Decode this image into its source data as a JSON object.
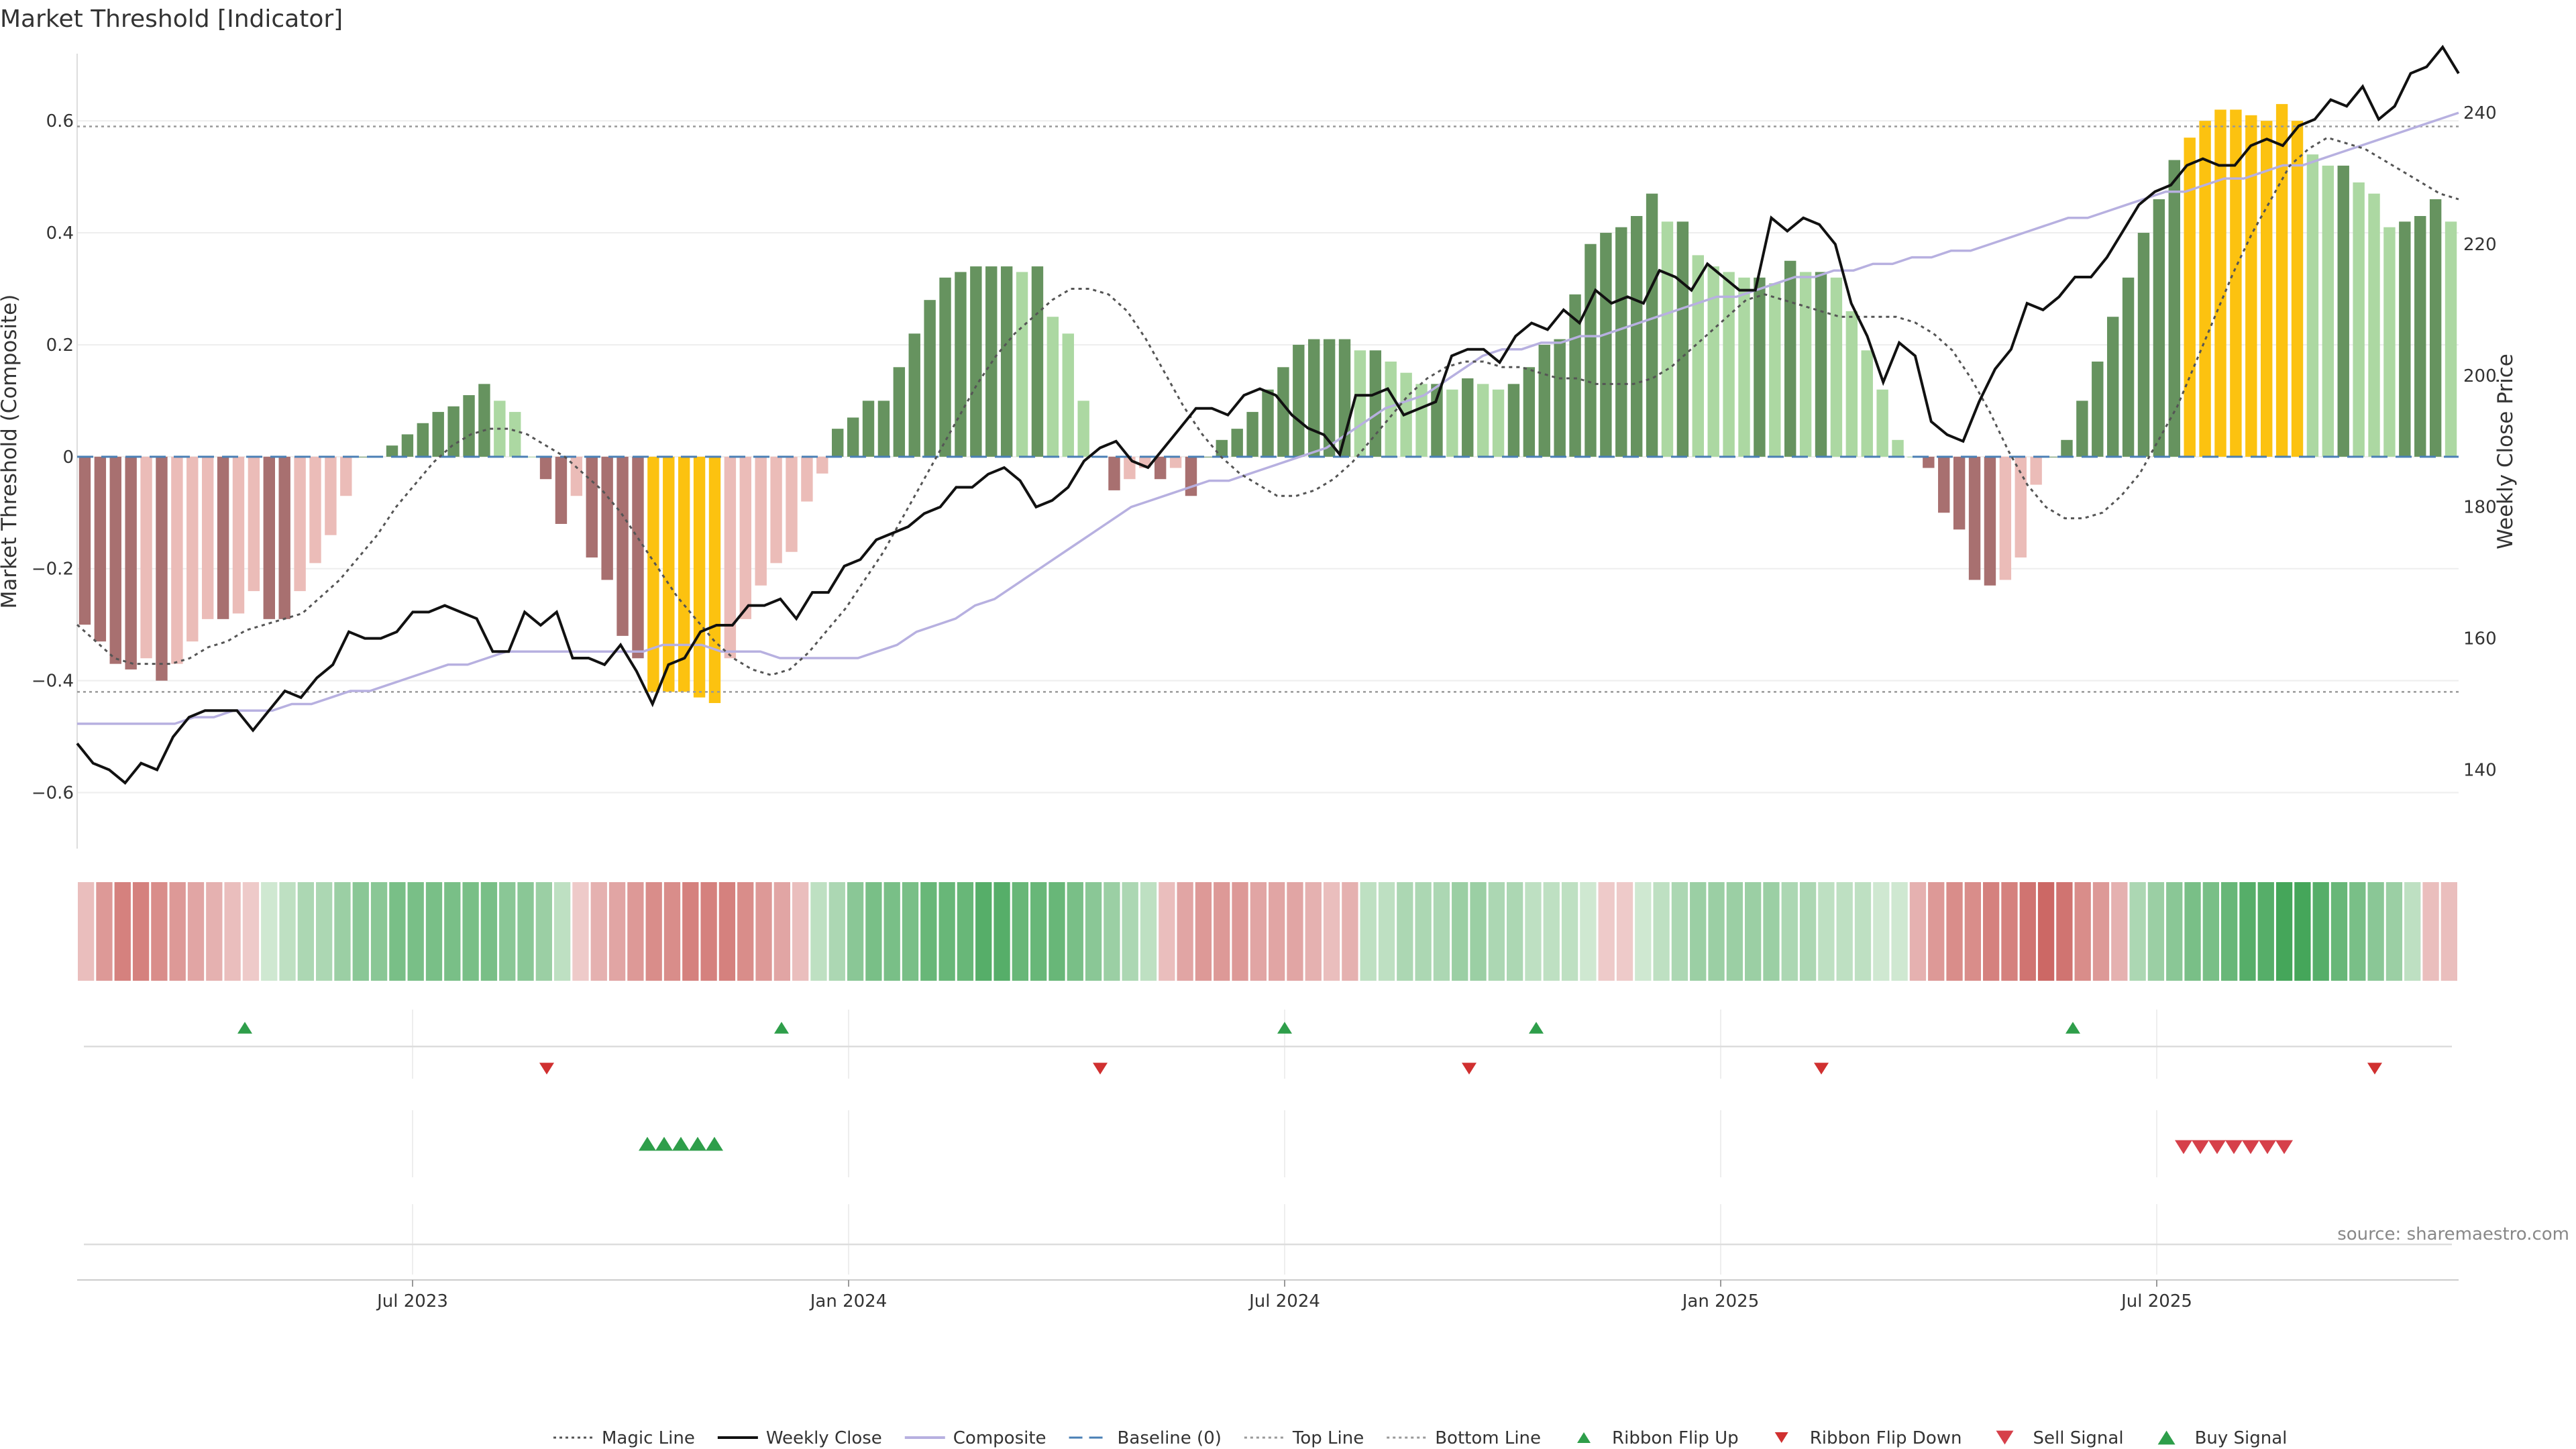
{
  "title": "Market Threshold [Indicator]",
  "source_label": "source: sharemaestro.com",
  "chart_data": {
    "type": "bar",
    "y_left_label": "Market Threshold (Composite)",
    "y_right_label": "Weekly Close Price",
    "y_left_ticks": [
      0.6,
      0.4,
      0.2,
      0,
      -0.2,
      -0.4,
      -0.6
    ],
    "y_left_tick_labels": [
      "0.6",
      "0.4",
      "0.2",
      "0",
      "−0.2",
      "−0.4",
      "−0.6"
    ],
    "ylim_left": [
      -0.7,
      0.72
    ],
    "y_right_ticks": [
      240,
      220,
      200,
      180,
      160,
      140
    ],
    "y_right_tick_labels": [
      "240",
      "220",
      "200",
      "180",
      "160",
      "140"
    ],
    "ylim_right": [
      128,
      249
    ],
    "x_range_weeks": [
      0,
      142
    ],
    "x_ticks": [
      {
        "label": "Jul 2023",
        "week": 20
      },
      {
        "label": "Jan 2024",
        "week": 46
      },
      {
        "label": "Jul 2024",
        "week": 72
      },
      {
        "label": "Jan 2025",
        "week": 98
      },
      {
        "label": "Jul 2025",
        "week": 124
      }
    ],
    "top_line": 0.59,
    "bottom_line": -0.42,
    "baseline": 0,
    "composite": [
      -0.3,
      -0.33,
      -0.37,
      -0.38,
      -0.36,
      -0.4,
      -0.37,
      -0.33,
      -0.29,
      -0.29,
      -0.28,
      -0.24,
      -0.29,
      -0.29,
      -0.24,
      -0.19,
      -0.14,
      -0.07,
      0.0,
      0.0,
      0.02,
      0.04,
      0.06,
      0.08,
      0.09,
      0.11,
      0.13,
      0.1,
      0.08,
      0.0,
      -0.04,
      -0.12,
      -0.07,
      -0.18,
      -0.22,
      -0.32,
      -0.36,
      -0.42,
      -0.42,
      -0.42,
      -0.43,
      -0.44,
      -0.36,
      -0.29,
      -0.23,
      -0.19,
      -0.17,
      -0.08,
      -0.03,
      0.05,
      0.07,
      0.1,
      0.1,
      0.16,
      0.22,
      0.28,
      0.32,
      0.33,
      0.34,
      0.34,
      0.34,
      0.33,
      0.34,
      0.25,
      0.22,
      0.1,
      0.0,
      -0.06,
      -0.04,
      -0.02,
      -0.04,
      -0.02,
      -0.07,
      0.0,
      0.03,
      0.05,
      0.08,
      0.12,
      0.16,
      0.2,
      0.21,
      0.21,
      0.21,
      0.19,
      0.19,
      0.17,
      0.15,
      0.13,
      0.13,
      0.12,
      0.14,
      0.13,
      0.12,
      0.13,
      0.16,
      0.2,
      0.21,
      0.29,
      0.38,
      0.4,
      0.41,
      0.43,
      0.47,
      0.42,
      0.42,
      0.36,
      0.34,
      0.33,
      0.32,
      0.32,
      0.31,
      0.35,
      0.33,
      0.33,
      0.32,
      0.26,
      0.19,
      0.12,
      0.03,
      0.0,
      -0.02,
      -0.1,
      -0.13,
      -0.22,
      -0.23,
      -0.22,
      -0.18,
      -0.05,
      0.0,
      0.03,
      0.1,
      0.17,
      0.25,
      0.32,
      0.4,
      0.46,
      0.53,
      0.57,
      0.6,
      0.62,
      0.62,
      0.61,
      0.6,
      0.63,
      0.6,
      0.54,
      0.52,
      0.52,
      0.49
    ],
    "composite_extra": [
      0.47,
      0.41,
      0.42,
      0.43,
      0.46,
      0.42
    ],
    "bar_styles": "one style code per composite value: R=dark red, r=light red, G=dark green, g=light green, Y=gold; generated from value trend",
    "weekly_close": [
      144,
      141,
      140,
      138,
      141,
      140,
      145,
      148,
      149,
      149,
      149,
      146,
      149,
      152,
      151,
      154,
      156,
      161,
      160,
      160,
      161,
      164,
      164,
      165,
      164,
      163,
      158,
      158,
      164,
      162,
      164,
      157,
      157,
      156,
      159,
      155,
      150,
      156,
      157,
      161,
      162,
      162,
      165,
      165,
      166,
      163,
      167,
      167,
      171,
      172,
      175,
      176,
      177,
      179,
      180,
      183,
      183,
      185,
      186,
      184,
      180,
      181,
      183,
      187,
      189,
      190,
      187,
      186,
      189,
      192,
      195,
      195,
      194,
      197,
      198,
      197,
      194,
      192,
      191,
      188,
      197,
      197,
      198,
      194,
      195,
      196,
      203,
      204,
      204,
      202,
      206,
      208,
      207,
      210,
      208,
      213,
      211,
      212,
      211,
      216,
      215,
      213,
      217,
      215,
      213,
      213,
      224,
      222,
      224,
      223,
      220,
      211,
      206,
      199,
      205,
      203,
      193,
      191,
      190,
      196,
      201,
      204,
      211,
      210,
      212,
      215,
      215,
      218,
      222,
      226,
      228,
      229,
      232,
      233,
      232,
      232,
      235,
      236,
      235,
      238,
      239,
      242,
      241,
      244,
      239,
      241,
      246,
      247,
      250,
      246
    ],
    "magic_line": [
      -0.3,
      -0.33,
      -0.36,
      -0.37,
      -0.37,
      -0.37,
      -0.36,
      -0.34,
      -0.33,
      -0.31,
      -0.3,
      -0.29,
      -0.28,
      -0.25,
      -0.22,
      -0.18,
      -0.14,
      -0.09,
      -0.05,
      -0.01,
      0.02,
      0.04,
      0.05,
      0.05,
      0.04,
      0.02,
      0.0,
      -0.03,
      -0.06,
      -0.1,
      -0.15,
      -0.2,
      -0.25,
      -0.29,
      -0.33,
      -0.36,
      -0.38,
      -0.39,
      -0.38,
      -0.35,
      -0.31,
      -0.27,
      -0.22,
      -0.17,
      -0.11,
      -0.05,
      0.01,
      0.07,
      0.13,
      0.18,
      0.22,
      0.25,
      0.28,
      0.3,
      0.3,
      0.29,
      0.26,
      0.21,
      0.15,
      0.09,
      0.04,
      0.0,
      -0.03,
      -0.05,
      -0.07,
      -0.07,
      -0.06,
      -0.04,
      -0.01,
      0.03,
      0.07,
      0.11,
      0.14,
      0.16,
      0.17,
      0.17,
      0.16,
      0.16,
      0.15,
      0.14,
      0.14,
      0.13,
      0.13,
      0.13,
      0.14,
      0.16,
      0.19,
      0.22,
      0.25,
      0.28,
      0.29,
      0.28,
      0.27,
      0.26,
      0.25,
      0.25,
      0.25,
      0.25,
      0.24,
      0.22,
      0.19,
      0.14,
      0.08,
      0.01,
      -0.05,
      -0.09,
      -0.11,
      -0.11,
      -0.1,
      -0.07,
      -0.03,
      0.03,
      0.09,
      0.17,
      0.25,
      0.33,
      0.4,
      0.46,
      0.52,
      0.55,
      0.57,
      0.56,
      0.55,
      0.53,
      0.51,
      0.49,
      0.47,
      0.46
    ],
    "composite_smooth": [
      147,
      147,
      147,
      147,
      147,
      147,
      148,
      148,
      149,
      149,
      149,
      150,
      150,
      151,
      152,
      152,
      153,
      154,
      155,
      156,
      156,
      157,
      158,
      158,
      158,
      158,
      158,
      158,
      158,
      158,
      159,
      159,
      159,
      158,
      158,
      158,
      157,
      157,
      157,
      157,
      157,
      158,
      159,
      161,
      162,
      163,
      165,
      166,
      168,
      170,
      172,
      174,
      176,
      178,
      180,
      181,
      182,
      183,
      184,
      184,
      185,
      186,
      187,
      188,
      189,
      191,
      193,
      195,
      196,
      197,
      199,
      201,
      203,
      204,
      204,
      205,
      205,
      206,
      206,
      207,
      208,
      209,
      210,
      211,
      212,
      212,
      213,
      214,
      215,
      215,
      216,
      216,
      217,
      217,
      218,
      218,
      219,
      219,
      220,
      221,
      222,
      223,
      224,
      224,
      225,
      226,
      227,
      228,
      228,
      229,
      230,
      230,
      231,
      232,
      232,
      233,
      234,
      235,
      236,
      237,
      238,
      239,
      240
    ],
    "ribbon_values": [
      -0.2,
      -0.5,
      -0.7,
      -0.7,
      -0.6,
      -0.5,
      -0.4,
      -0.3,
      -0.2,
      -0.1,
      0.1,
      0.2,
      0.3,
      0.3,
      0.4,
      0.5,
      0.5,
      0.6,
      0.6,
      0.6,
      0.6,
      0.6,
      0.6,
      0.5,
      0.5,
      0.4,
      0.2,
      -0.1,
      -0.3,
      -0.4,
      -0.5,
      -0.6,
      -0.6,
      -0.7,
      -0.7,
      -0.7,
      -0.6,
      -0.5,
      -0.4,
      -0.2,
      0.2,
      0.3,
      0.5,
      0.6,
      0.6,
      0.6,
      0.7,
      0.7,
      0.7,
      0.8,
      0.8,
      0.7,
      0.7,
      0.7,
      0.6,
      0.5,
      0.4,
      0.3,
      0.2,
      -0.2,
      -0.4,
      -0.5,
      -0.5,
      -0.5,
      -0.4,
      -0.4,
      -0.4,
      -0.3,
      -0.2,
      -0.3,
      0.2,
      0.2,
      0.3,
      0.3,
      0.3,
      0.4,
      0.4,
      0.3,
      0.3,
      0.2,
      0.2,
      0.2,
      0.1,
      -0.1,
      -0.1,
      0.1,
      0.2,
      0.3,
      0.4,
      0.4,
      0.4,
      0.4,
      0.4,
      0.3,
      0.3,
      0.2,
      0.2,
      0.2,
      0.1,
      0.1,
      -0.3,
      -0.5,
      -0.6,
      -0.6,
      -0.7,
      -0.7,
      -0.8,
      -0.9,
      -0.8,
      -0.6,
      -0.5,
      -0.3,
      0.3,
      0.4,
      0.5,
      0.6,
      0.6,
      0.7,
      0.8,
      0.8,
      0.9,
      0.9,
      0.8,
      0.7,
      0.6,
      0.5,
      0.4,
      0.2,
      -0.2,
      -0.2
    ],
    "ribbon_flip_up_weeks": [
      10,
      42,
      72,
      87,
      119
    ],
    "ribbon_flip_down_weeks": [
      28,
      61,
      83,
      104,
      137
    ],
    "buy_signal_weeks": [
      33,
      34,
      35,
      36,
      37
    ],
    "sell_signal_weeks": [
      125,
      126,
      127,
      128,
      129,
      130,
      131
    ],
    "legend": [
      {
        "label": "Magic Line",
        "kind": "dotted",
        "color": "#555555"
      },
      {
        "label": "Weekly Close",
        "kind": "line",
        "color": "#111111"
      },
      {
        "label": "Composite",
        "kind": "line",
        "color": "#b7b0e0"
      },
      {
        "label": "Baseline (0)",
        "kind": "dashed",
        "color": "#4a7fb5"
      },
      {
        "label": "Top Line",
        "kind": "dotted",
        "color": "#999999"
      },
      {
        "label": "Bottom Line",
        "kind": "dotted",
        "color": "#999999"
      },
      {
        "label": "Ribbon Flip Up",
        "kind": "tri-up-small",
        "color": "#2e9e4a"
      },
      {
        "label": "Ribbon Flip Down",
        "kind": "tri-down-small",
        "color": "#d03030"
      },
      {
        "label": "Sell Signal",
        "kind": "tri-down",
        "color": "#d6404a"
      },
      {
        "label": "Buy Signal",
        "kind": "tri-up",
        "color": "#2e9e4a"
      }
    ],
    "colors": {
      "dark_red": "#a87070",
      "light_red": "#ebbcb8",
      "dark_green": "#66935f",
      "light_green": "#acd8a2",
      "gold": "#fcc210"
    }
  }
}
